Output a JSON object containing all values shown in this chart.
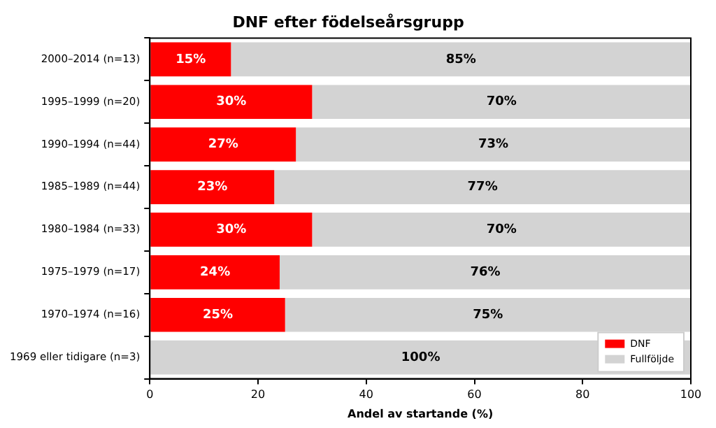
{
  "chart_data": {
    "type": "bar",
    "title": "DNF efter födelseårsgrupp",
    "xlabel": "Andel av startande (%)",
    "orientation": "horizontal",
    "stacked": true,
    "categories": [
      "2000–2014 (n=13)",
      "1995–1999 (n=20)",
      "1990–1994 (n=44)",
      "1985–1989 (n=44)",
      "1980–1984 (n=33)",
      "1975–1979 (n=17)",
      "1970–1974 (n=16)",
      "1969 eller tidigare (n=3)"
    ],
    "series": [
      {
        "name": "DNF",
        "color": "#ff0000",
        "values": [
          15,
          30,
          27,
          23,
          30,
          24,
          25,
          0
        ],
        "value_labels": [
          "15%",
          "30%",
          "27%",
          "23%",
          "30%",
          "24%",
          "25%",
          null
        ]
      },
      {
        "name": "Fullföljde",
        "color": "#d3d3d3",
        "values": [
          85,
          70,
          73,
          77,
          70,
          76,
          75,
          100
        ],
        "value_labels": [
          "85%",
          "70%",
          "73%",
          "77%",
          "70%",
          "76%",
          "75%",
          "100%"
        ]
      }
    ],
    "xlim": [
      0,
      100
    ],
    "xticks": [
      0,
      20,
      40,
      60,
      80,
      100
    ],
    "grid": false,
    "legend": "bottom right"
  }
}
